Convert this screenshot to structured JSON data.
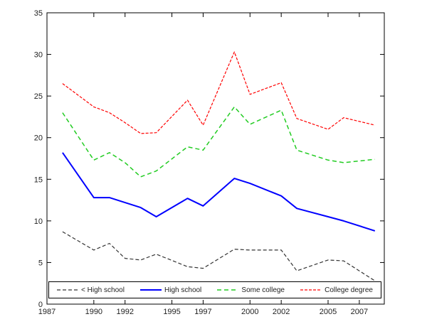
{
  "figure": {
    "background": "#ffffff"
  },
  "chart_data": {
    "type": "line",
    "title": "",
    "xlabel": "",
    "ylabel": "",
    "grid": false,
    "legend_position": "bottom-inside",
    "xlim": [
      1987,
      2008.6
    ],
    "ylim": [
      0,
      35
    ],
    "xticks": [
      1987,
      1990,
      1992,
      1995,
      1997,
      2000,
      2002,
      2005,
      2007
    ],
    "yticks": [
      0,
      5,
      10,
      15,
      20,
      25,
      30,
      35
    ],
    "x": [
      1988,
      1990,
      1991,
      1992,
      1993,
      1994,
      1996,
      1997,
      1999,
      2000,
      2002,
      2003,
      2005,
      2006,
      2008
    ],
    "series": [
      {
        "name": "< High school",
        "color": "#333333",
        "dash": "5,3",
        "width": 1.2,
        "values": [
          8.7,
          6.5,
          7.3,
          5.5,
          5.3,
          6.0,
          4.5,
          4.3,
          6.6,
          6.5,
          6.5,
          4.0,
          5.3,
          5.2,
          2.8
        ]
      },
      {
        "name": "High school",
        "color": "#0000ff",
        "dash": "",
        "width": 2,
        "values": [
          18.2,
          12.8,
          12.8,
          12.2,
          11.6,
          10.5,
          12.7,
          11.8,
          15.1,
          14.5,
          13.0,
          11.5,
          10.5,
          10.0,
          8.8
        ]
      },
      {
        "name": "Some college",
        "color": "#22cc22",
        "dash": "6,4",
        "width": 1.5,
        "values": [
          23.0,
          17.3,
          18.2,
          17.0,
          15.3,
          16.0,
          18.9,
          18.5,
          23.7,
          21.6,
          23.3,
          18.5,
          17.3,
          17.0,
          17.4
        ]
      },
      {
        "name": "College degree",
        "color": "#ff0000",
        "dash": "4,2",
        "width": 1.2,
        "values": [
          26.5,
          23.7,
          23.0,
          21.8,
          20.5,
          20.6,
          24.5,
          21.5,
          30.3,
          25.2,
          26.6,
          22.3,
          21.0,
          22.4,
          21.5
        ]
      }
    ]
  }
}
